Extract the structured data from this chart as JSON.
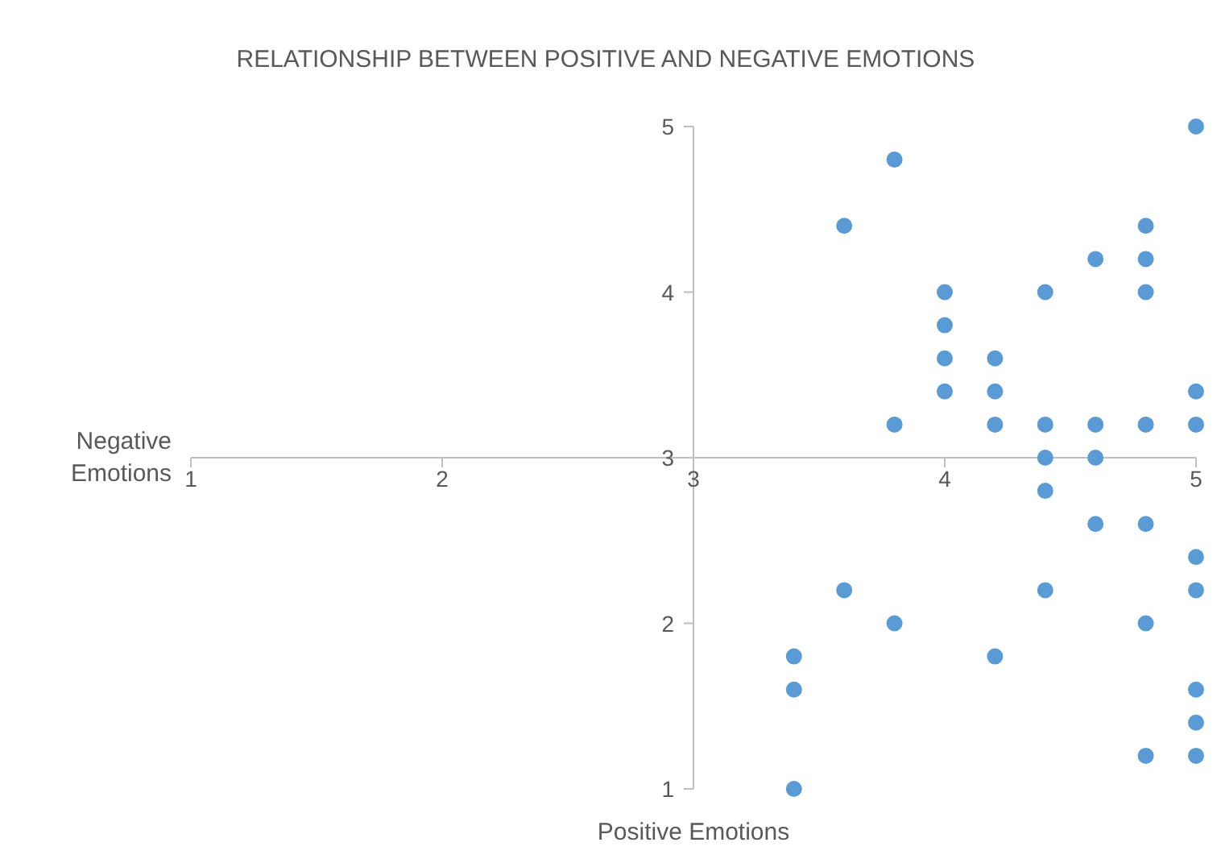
{
  "chart_data": {
    "type": "scatter",
    "title": "RELATIONSHIP BETWEEN POSITIVE AND NEGATIVE EMOTIONS",
    "xlabel": "Positive Emotions",
    "ylabel": "Negative Emotions",
    "x": [
      5.0,
      3.8,
      3.6,
      4.8,
      4.6,
      4.8,
      4.0,
      4.4,
      4.8,
      4.0,
      4.0,
      4.2,
      4.0,
      4.2,
      5.0,
      3.8,
      4.2,
      4.4,
      4.6,
      4.8,
      5.0,
      4.4,
      4.6,
      4.4,
      4.6,
      4.8,
      5.0,
      3.6,
      4.4,
      5.0,
      3.8,
      4.8,
      3.4,
      4.2,
      3.4,
      5.0,
      5.0,
      4.8,
      5.0,
      3.4
    ],
    "values": [
      5.0,
      4.8,
      4.4,
      4.4,
      4.2,
      4.2,
      4.0,
      4.0,
      4.0,
      3.8,
      3.6,
      3.6,
      3.4,
      3.4,
      3.4,
      3.2,
      3.2,
      3.2,
      3.2,
      3.2,
      3.2,
      3.0,
      3.0,
      2.8,
      2.6,
      2.6,
      2.4,
      2.2,
      2.2,
      2.2,
      2.0,
      2.0,
      1.8,
      1.8,
      1.6,
      1.6,
      1.4,
      1.2,
      1.2,
      1.0
    ],
    "color": "#5b9bd5",
    "marker": "circle",
    "xlim": [
      1,
      5
    ],
    "xticks": [
      1,
      2,
      3,
      4,
      5
    ],
    "ylim": [
      1,
      5
    ],
    "yticks": [
      1,
      2,
      3,
      4,
      5
    ],
    "grid": false
  }
}
